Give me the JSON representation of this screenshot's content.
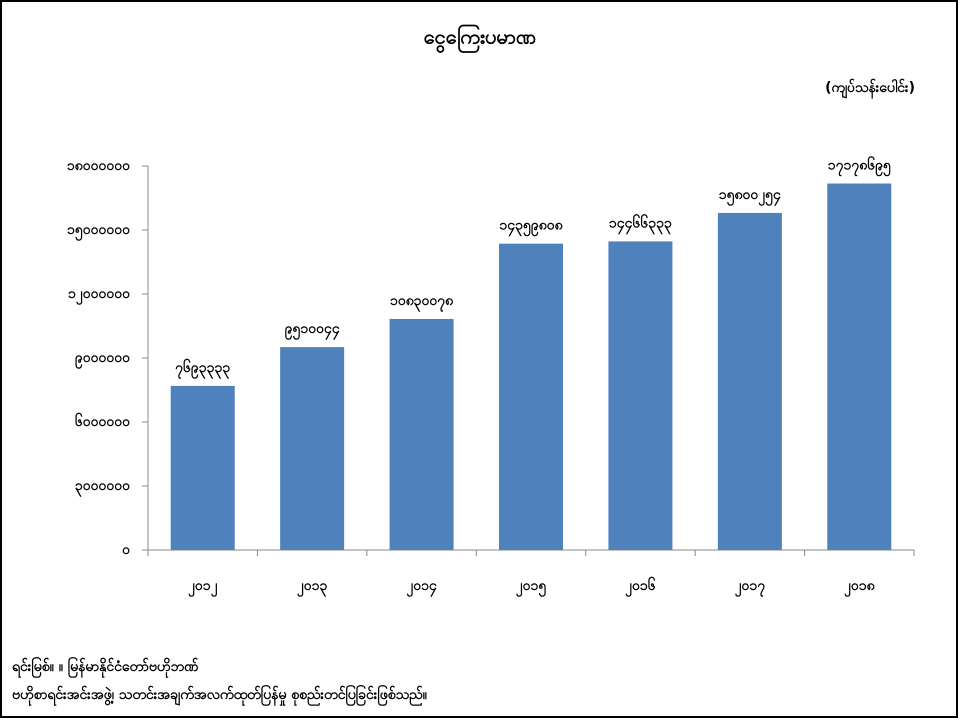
{
  "chart_data": {
    "type": "bar",
    "title": "ငွေကြေးပမာဏ",
    "unit_label": "(ကျပ်သန်းပေါင်း)",
    "categories": [
      "၂၀၁၂",
      "၂၀၁၃",
      "၂၀၁၄",
      "၂၀၁၅",
      "၂၀၁၆",
      "၂၀၁၇",
      "၂၀၁၈"
    ],
    "values": [
      7693333,
      9510044,
      10830078,
      14359808,
      14466333,
      15800254,
      17178695
    ],
    "value_labels": [
      "၇၆၉၃၃၃၃",
      "၉၅၁၀၀၄၄",
      "၁၀၈၃၀၀၇၈",
      "၁၄၃၅၉၈၀၈",
      "၁၄၄၆၆၃၃၃",
      "၁၅၈၀၀၂၅၄",
      "၁၇၁၇၈၆၉၅"
    ],
    "color": "#4f81bd",
    "ylim": [
      0,
      18000000
    ],
    "yticks": [
      {
        "value": 0,
        "label": "၀"
      },
      {
        "value": 3000000,
        "label": "၃၀၀၀၀၀၀"
      },
      {
        "value": 6000000,
        "label": "၆၀၀၀၀၀၀"
      },
      {
        "value": 9000000,
        "label": "၉၀၀၀၀၀၀"
      },
      {
        "value": 12000000,
        "label": "၁၂၀၀၀၀၀၀"
      },
      {
        "value": 15000000,
        "label": "၁၅၀၀၀၀၀၀"
      },
      {
        "value": 18000000,
        "label": "၁၈၀၀၀၀၀၀"
      }
    ],
    "source": [
      "ရင်းမြစ်။ ။ မြန်မာနိုင်ငံတော်ဗဟိုဘဏ်",
      "ဗဟိုစာရင်းအင်းအဖွဲ့၊ သတင်းအချက်အလက်ထုတ်ပြန်မှု စုစည်းတင်ပြခြင်းဖြစ်သည်။"
    ]
  }
}
